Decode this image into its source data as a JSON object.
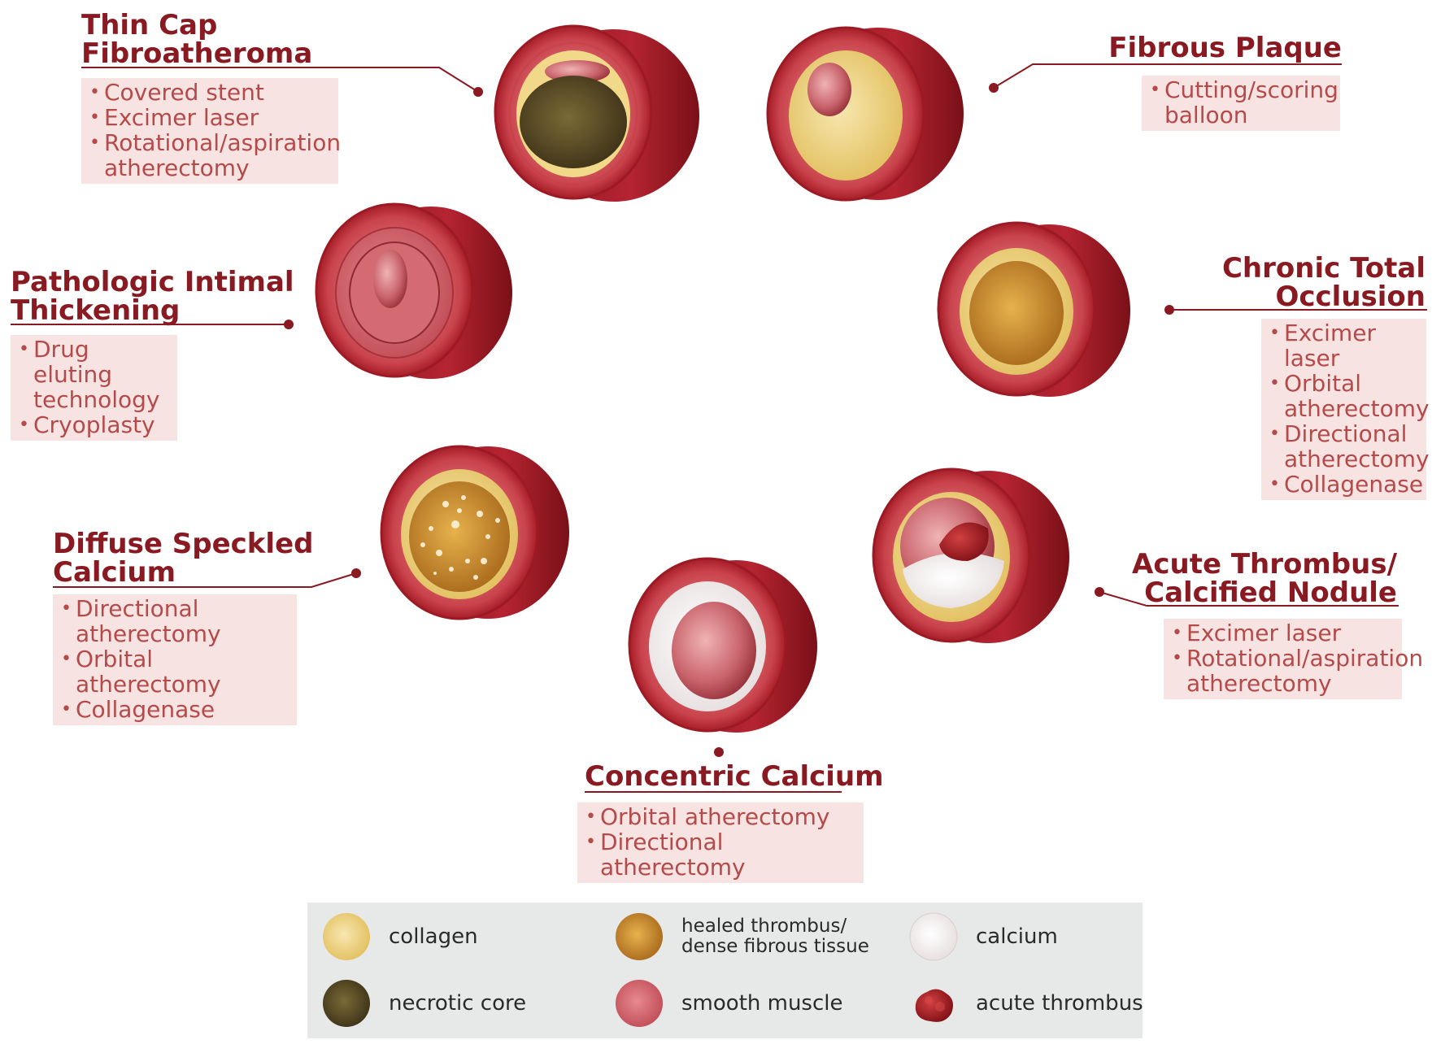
{
  "lesions": [
    {
      "id": "thin-cap",
      "title_lines": [
        "Thin Cap",
        "Fibroatheroma"
      ],
      "treatments": [
        [
          "Covered stent"
        ],
        [
          "Excimer laser"
        ],
        [
          "Rotational/aspiration",
          "atherectomy"
        ]
      ]
    },
    {
      "id": "fibrous",
      "title_lines": [
        "Fibrous Plaque"
      ],
      "treatments": [
        [
          "Cutting/scoring",
          "balloon"
        ]
      ]
    },
    {
      "id": "pit",
      "title_lines": [
        "Pathologic Intimal",
        "Thickening"
      ],
      "treatments": [
        [
          "Drug eluting",
          "technology"
        ],
        [
          "Cryoplasty"
        ]
      ]
    },
    {
      "id": "cto",
      "title_lines": [
        "Chronic Total",
        "Occlusion"
      ],
      "treatments": [
        [
          "Excimer laser"
        ],
        [
          "Orbital",
          "atherectomy"
        ],
        [
          "Directional",
          "atherectomy"
        ],
        [
          "Collagenase"
        ]
      ]
    },
    {
      "id": "speckled",
      "title_lines": [
        "Diffuse Speckled",
        "Calcium"
      ],
      "treatments": [
        [
          "Directional",
          "atherectomy"
        ],
        [
          "Orbital atherectomy"
        ],
        [
          "Collagenase"
        ]
      ]
    },
    {
      "id": "thrombus",
      "title_lines": [
        "Acute Thrombus/",
        "Calcified Nodule"
      ],
      "treatments": [
        [
          "Excimer laser"
        ],
        [
          "Rotational/aspiration",
          "atherectomy"
        ]
      ]
    },
    {
      "id": "concentric",
      "title_lines": [
        "Concentric Calcium"
      ],
      "treatments": [
        [
          "Orbital atherectomy"
        ],
        [
          "Directional atherectomy"
        ]
      ]
    }
  ],
  "legend": [
    {
      "id": "collagen",
      "label_lines": [
        "collagen"
      ],
      "color": "#f0d27c"
    },
    {
      "id": "healed",
      "label_lines": [
        "healed thrombus/",
        "dense fibrous tissue"
      ],
      "color": "#d99a2e"
    },
    {
      "id": "calcium",
      "label_lines": [
        "calcium"
      ],
      "color": "#f4eeee"
    },
    {
      "id": "necrotic",
      "label_lines": [
        "necrotic core"
      ],
      "color": "#6b5a2e"
    },
    {
      "id": "muscle",
      "label_lines": [
        "smooth muscle"
      ],
      "color": "#cf5b62"
    },
    {
      "id": "thrombus",
      "label_lines": [
        "acute thrombus"
      ],
      "color": "#a41f25"
    }
  ],
  "colors": {
    "vessel_outer": "#b01f2a",
    "vessel_dark": "#7e1119",
    "vessel_media": "#d35a60",
    "title": "#8a1a22",
    "treatment_text": "#b54a4a",
    "treatment_bg": "#f7e4e2",
    "leader_line": "#8a1a22",
    "legend_bg": "#e7e8e8"
  }
}
